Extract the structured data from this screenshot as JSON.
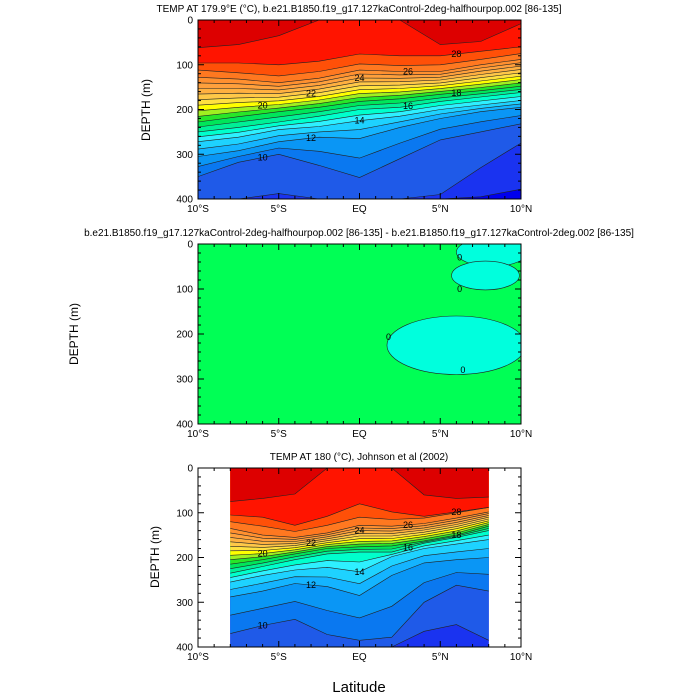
{
  "chart_data": [
    {
      "type": "contour",
      "title": "TEMP AT 179.9°E (°C), b.e21.B1850.f19_g17.127kaControl-2deg-halfhourpop.002 [86-135]",
      "ylabel": "DEPTH (m)",
      "xlabel": "",
      "xlim": [
        -10,
        10
      ],
      "ylim": [
        0,
        400
      ],
      "xticks": [
        "10°S",
        "5°S",
        "EQ",
        "5°N",
        "10°N"
      ],
      "yticks": [
        "0",
        "100",
        "200",
        "300",
        "400"
      ],
      "lats": [
        -10,
        -7.5,
        -5,
        -2.5,
        0,
        2.5,
        5,
        7.5,
        10
      ],
      "isotherms": [
        {
          "level": 8,
          "depth": [
            401,
            401,
            401,
            401,
            401,
            401,
            401,
            395,
            378
          ]
        },
        {
          "level": 9,
          "depth": [
            401,
            401,
            388,
            401,
            401,
            401,
            390,
            330,
            275
          ]
        },
        {
          "level": 10,
          "depth": [
            350,
            318,
            300,
            325,
            352,
            310,
            268,
            250,
            232
          ]
        },
        {
          "level": 12,
          "depth": [
            305,
            292,
            272,
            262,
            265,
            240,
            220,
            205,
            195
          ]
        },
        {
          "level": 14,
          "depth": [
            272,
            262,
            245,
            238,
            225,
            215,
            200,
            190,
            180
          ]
        },
        {
          "level": 16,
          "depth": [
            250,
            240,
            228,
            215,
            200,
            195,
            182,
            172,
            162
          ]
        },
        {
          "level": 18,
          "depth": [
            228,
            216,
            205,
            195,
            182,
            176,
            166,
            158,
            148
          ]
        },
        {
          "level": 26,
          "depth": [
            128,
            132,
            140,
            130,
            112,
            115,
            115,
            100,
            88
          ]
        },
        {
          "level": 27,
          "depth": [
            112,
            118,
            125,
            115,
            98,
            102,
            100,
            88,
            75
          ]
        },
        {
          "level": 28,
          "depth": [
            96,
            96,
            100,
            92,
            76,
            80,
            80,
            70,
            60
          ]
        },
        {
          "level": 29,
          "depth": [
            62,
            55,
            35,
            0,
            0,
            0,
            55,
            48,
            8
          ]
        }
      ],
      "labels": [
        "10",
        "12",
        "14",
        "16",
        "18",
        "20",
        "22",
        "24",
        "26",
        "28"
      ]
    },
    {
      "type": "contour",
      "title": "b.e21.B1850.f19_g17.127kaControl-2deg-halfhourpop.002 [86-135] - b.e21.B1850.f19_g17.127kaControl-2deg.002 [86-135]",
      "ylabel": "DEPTH (m)",
      "xlim": [
        -10,
        10
      ],
      "ylim": [
        0,
        400
      ],
      "xticks": [
        "10°S",
        "5°S",
        "EQ",
        "5°N",
        "10°N"
      ],
      "yticks": [
        "0",
        "100",
        "200",
        "300",
        "400"
      ],
      "background_value_range": "0 to small positive",
      "regions": [
        {
          "value_sign": "negative",
          "center_lat": 8.2,
          "center_depth": 18,
          "half_width_lat": 2.2,
          "half_height_depth": 32
        },
        {
          "value_sign": "negative",
          "center_lat": 7.8,
          "center_depth": 70,
          "half_width_lat": 2.1,
          "half_height_depth": 32
        },
        {
          "value_sign": "negative",
          "center_lat": 6.0,
          "center_depth": 225,
          "half_width_lat": 4.3,
          "half_height_depth": 65
        }
      ],
      "labels": [
        "0",
        "0",
        "0",
        "0"
      ]
    },
    {
      "type": "contour",
      "title": "TEMP AT 180 (°C), Johnson et al (2002)",
      "ylabel": "DEPTH (m)",
      "xlabel": "Latitude",
      "xlim": [
        -10,
        10
      ],
      "ylim": [
        0,
        400
      ],
      "data_lat_range": [
        -8,
        8
      ],
      "xticks": [
        "10°S",
        "5°S",
        "EQ",
        "5°N",
        "10°N"
      ],
      "yticks": [
        "0",
        "100",
        "200",
        "300",
        "400"
      ],
      "lats": [
        -8,
        -6,
        -4,
        -2,
        0,
        2,
        4,
        6,
        8
      ],
      "isotherms": [
        {
          "level": 8,
          "depth": [
            401,
            401,
            401,
            401,
            401,
            401,
            401,
            401,
            401
          ]
        },
        {
          "level": 9,
          "depth": [
            401,
            401,
            401,
            401,
            401,
            401,
            365,
            350,
            385
          ]
        },
        {
          "level": 10,
          "depth": [
            370,
            352,
            338,
            372,
            385,
            378,
            300,
            262,
            275
          ]
        },
        {
          "level": 12,
          "depth": [
            288,
            275,
            258,
            265,
            285,
            240,
            212,
            205,
            200
          ]
        },
        {
          "level": 14,
          "depth": [
            255,
            240,
            228,
            222,
            232,
            198,
            180,
            170,
            160
          ]
        },
        {
          "level": 16,
          "depth": [
            235,
            220,
            205,
            192,
            188,
            188,
            168,
            155,
            140
          ]
        },
        {
          "level": 18,
          "depth": [
            215,
            205,
            192,
            180,
            176,
            174,
            163,
            150,
            130
          ]
        },
        {
          "level": 26,
          "depth": [
            135,
            150,
            155,
            145,
            128,
            130,
            124,
            112,
            98
          ]
        },
        {
          "level": 27,
          "depth": [
            120,
            130,
            142,
            128,
            110,
            115,
            112,
            100,
            88
          ]
        },
        {
          "level": 28,
          "depth": [
            105,
            110,
            128,
            108,
            80,
            98,
            108,
            98,
            88
          ]
        },
        {
          "level": 29,
          "depth": [
            75,
            68,
            58,
            0,
            0,
            0,
            60,
            68,
            65
          ]
        }
      ],
      "labels": [
        "10",
        "12",
        "14",
        "16",
        "18",
        "20",
        "22",
        "24",
        "26",
        "28"
      ]
    }
  ],
  "colors": {
    "diff_background": "#00ff55",
    "diff_negative": "#00ffdd"
  }
}
